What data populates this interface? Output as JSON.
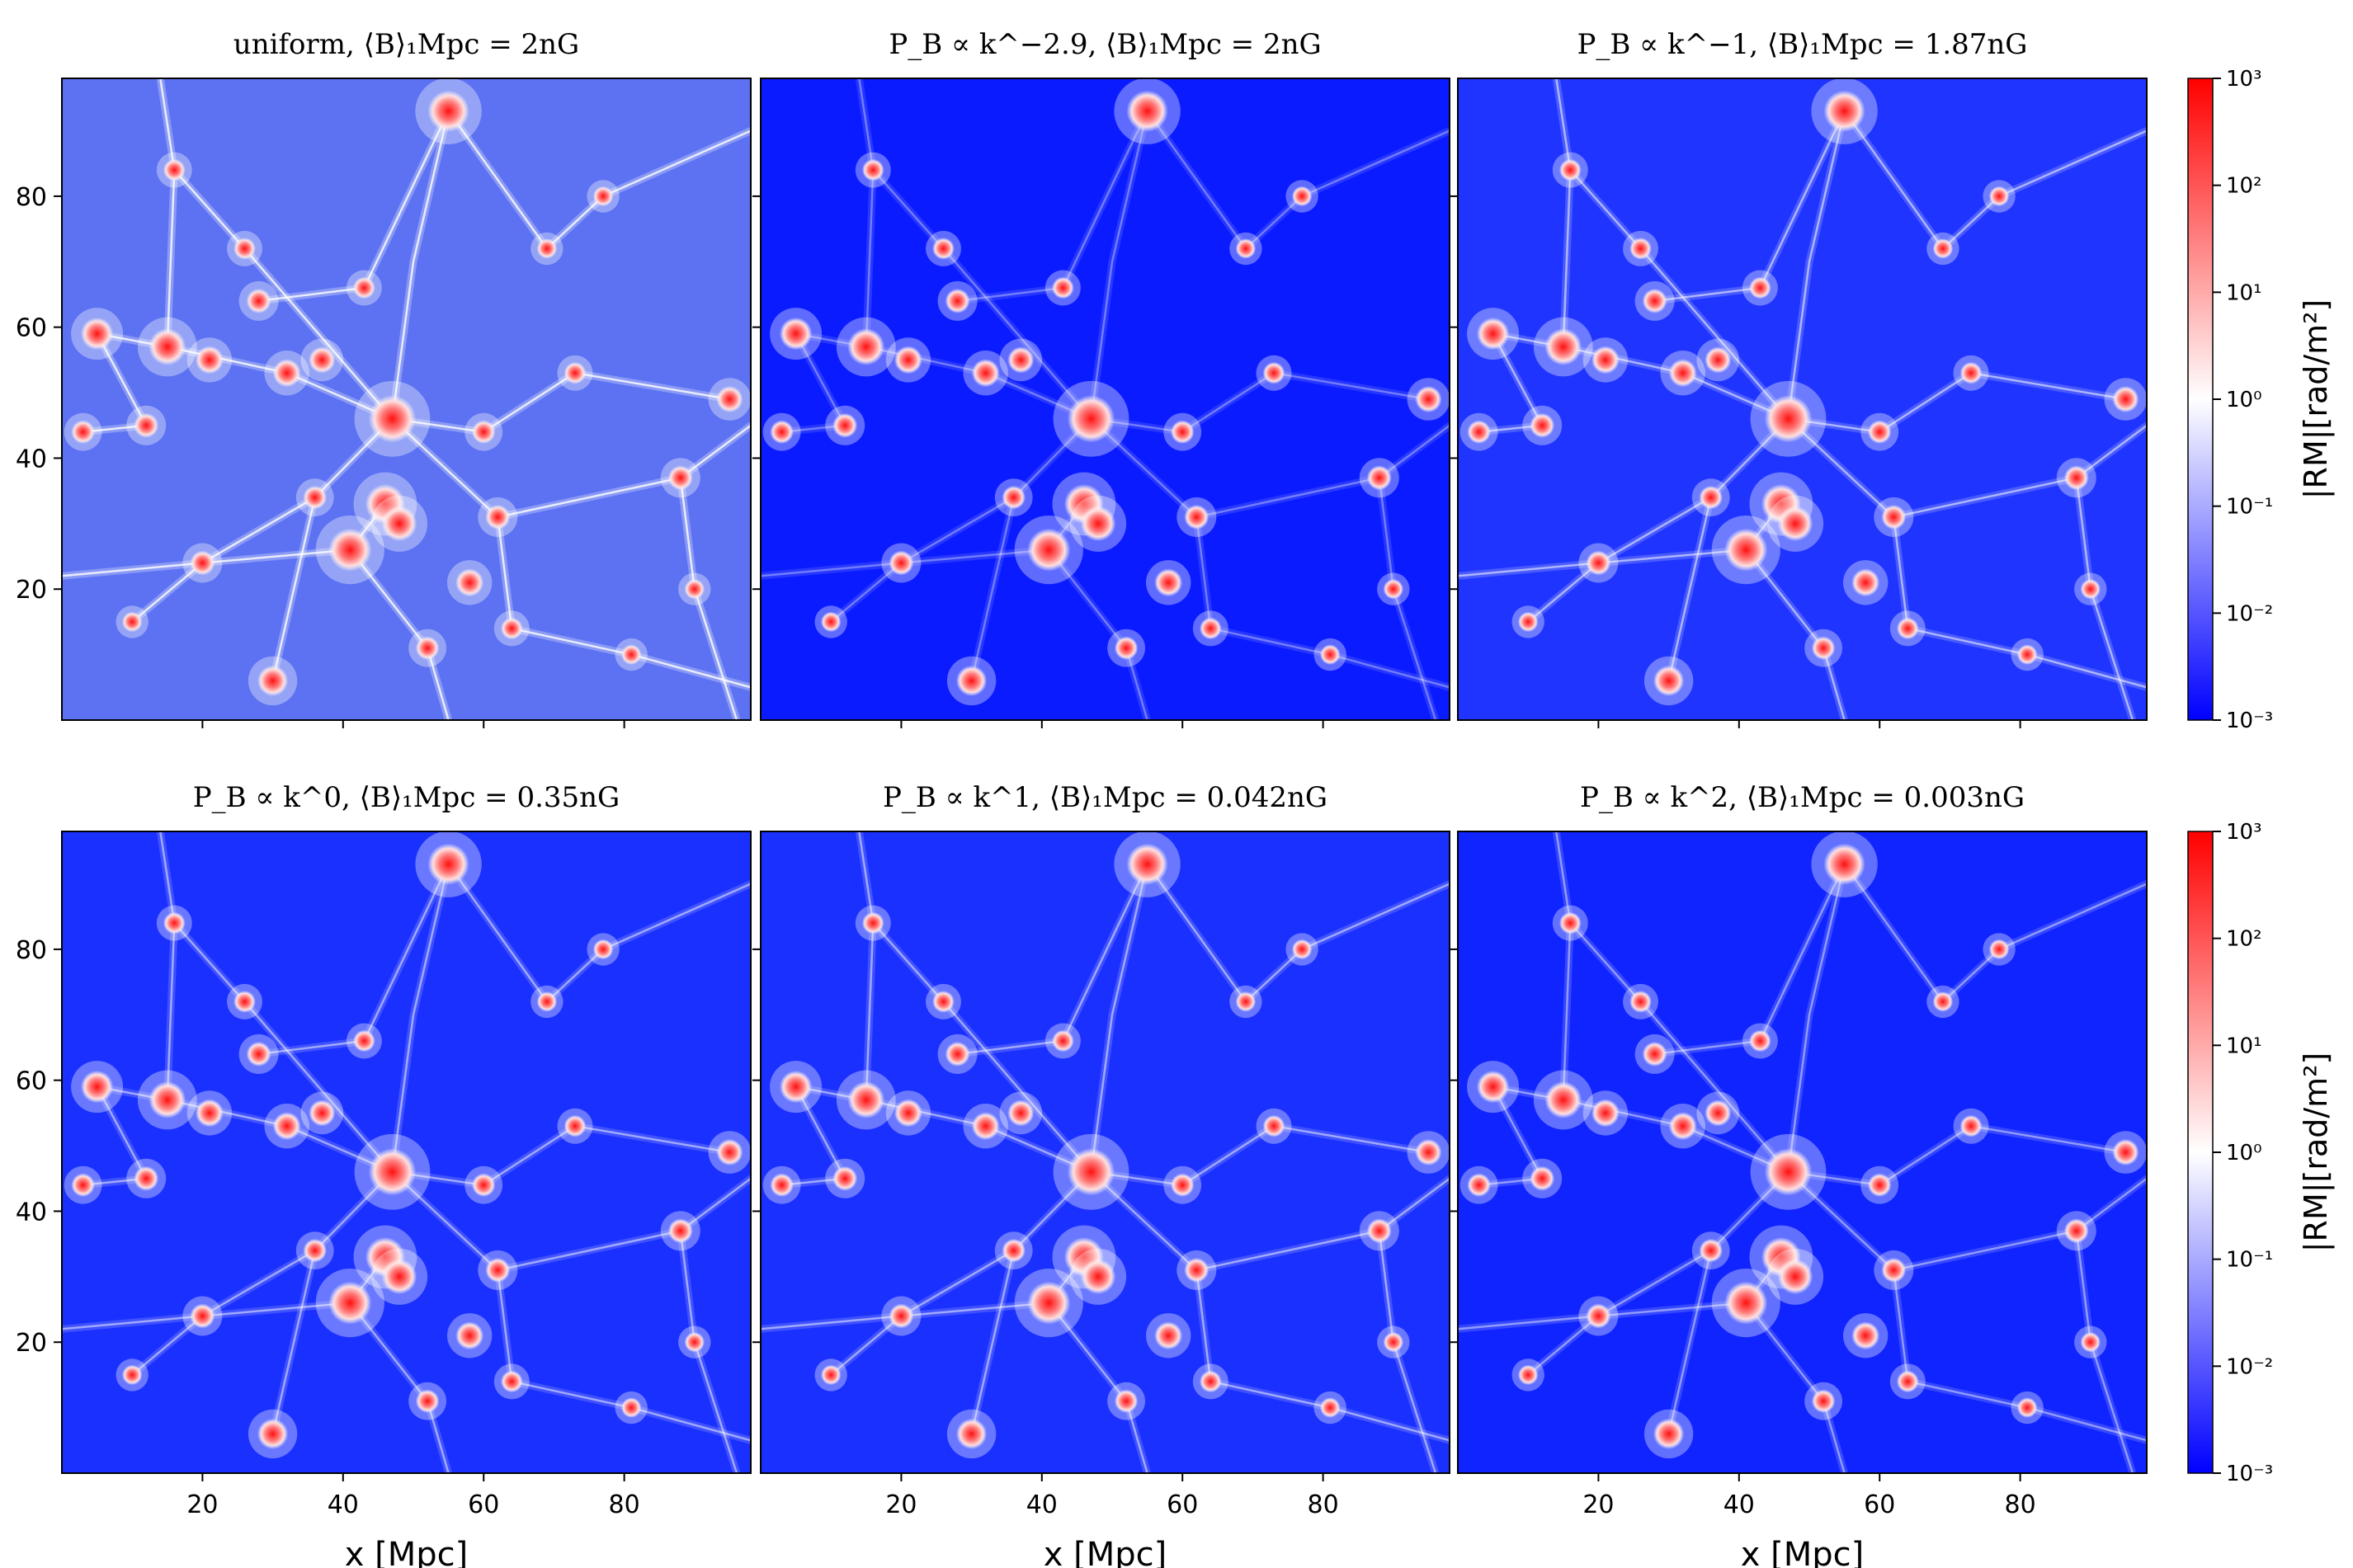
{
  "chart_data": {
    "type": "heatmap",
    "grid": false,
    "colormap": [
      "#0000ff",
      "#ffffff",
      "#ff0000"
    ],
    "color_scale": "log",
    "colorbar": {
      "label": "|RM|[rad/m²]",
      "range": [
        0.001,
        1000
      ],
      "ticks": [
        "10⁻³",
        "10⁻²",
        "10⁻¹",
        "10⁰",
        "10¹",
        "10²",
        "10³"
      ]
    },
    "x_axis": {
      "label": "x [Mpc]",
      "range": [
        0,
        98
      ],
      "ticks": [
        "20",
        "40",
        "60",
        "80"
      ]
    },
    "y_axis": {
      "label": "",
      "range": [
        0,
        98
      ],
      "ticks": [
        "20",
        "40",
        "60",
        "80"
      ]
    },
    "panels": [
      {
        "title": "uniform, ⟨B⟩₁Mpc = 2nG",
        "background": "#5c72f2",
        "filament_alpha": 0.8
      },
      {
        "title": "P_B ∝ k^−2.9, ⟨B⟩₁Mpc = 2nG",
        "background": "#0a1cff",
        "filament_alpha": 0.35
      },
      {
        "title": "P_B ∝ k^−1, ⟨B⟩₁Mpc = 1.87nG",
        "background": "#1f35ff",
        "filament_alpha": 0.55
      },
      {
        "title": "P_B ∝ k^0, ⟨B⟩₁Mpc = 0.35nG",
        "background": "#1a30ff",
        "filament_alpha": 0.5
      },
      {
        "title": "P_B ∝ k^1, ⟨B⟩₁Mpc = 0.042nG",
        "background": "#1a30ff",
        "filament_alpha": 0.5
      },
      {
        "title": "P_B ∝ k^2, ⟨B⟩₁Mpc = 0.003nG",
        "background": "#0f24ff",
        "filament_alpha": 0.45
      }
    ],
    "clusters": [
      {
        "x": 47,
        "y": 46,
        "rm": 200
      },
      {
        "x": 55,
        "y": 93,
        "rm": 80
      },
      {
        "x": 15,
        "y": 57,
        "rm": 40
      },
      {
        "x": 41,
        "y": 26,
        "rm": 100
      },
      {
        "x": 46,
        "y": 33,
        "rm": 60
      },
      {
        "x": 48,
        "y": 30,
        "rm": 30
      },
      {
        "x": 5,
        "y": 59,
        "rm": 20
      },
      {
        "x": 30,
        "y": 6,
        "rm": 15
      },
      {
        "x": 21,
        "y": 55,
        "rm": 10
      },
      {
        "x": 32,
        "y": 53,
        "rm": 10
      },
      {
        "x": 37,
        "y": 55,
        "rm": 8
      },
      {
        "x": 58,
        "y": 21,
        "rm": 10
      },
      {
        "x": 28,
        "y": 64,
        "rm": 6
      },
      {
        "x": 95,
        "y": 49,
        "rm": 8
      },
      {
        "x": 88,
        "y": 37,
        "rm": 6
      },
      {
        "x": 60,
        "y": 44,
        "rm": 5
      },
      {
        "x": 20,
        "y": 24,
        "rm": 6
      },
      {
        "x": 12,
        "y": 45,
        "rm": 6
      },
      {
        "x": 36,
        "y": 34,
        "rm": 5
      },
      {
        "x": 62,
        "y": 31,
        "rm": 6
      },
      {
        "x": 52,
        "y": 11,
        "rm": 5
      },
      {
        "x": 26,
        "y": 72,
        "rm": 4
      },
      {
        "x": 43,
        "y": 66,
        "rm": 4
      },
      {
        "x": 16,
        "y": 84,
        "rm": 4
      },
      {
        "x": 77,
        "y": 80,
        "rm": 3
      },
      {
        "x": 69,
        "y": 72,
        "rm": 3
      },
      {
        "x": 73,
        "y": 53,
        "rm": 4
      },
      {
        "x": 90,
        "y": 20,
        "rm": 3
      },
      {
        "x": 3,
        "y": 44,
        "rm": 5
      },
      {
        "x": 64,
        "y": 14,
        "rm": 4
      },
      {
        "x": 81,
        "y": 10,
        "rm": 3
      },
      {
        "x": 10,
        "y": 15,
        "rm": 3
      }
    ],
    "filaments": [
      [
        [
          55,
          93
        ],
        [
          50,
          70
        ],
        [
          47,
          46
        ]
      ],
      [
        [
          47,
          46
        ],
        [
          36,
          34
        ],
        [
          30,
          6
        ]
      ],
      [
        [
          47,
          46
        ],
        [
          32,
          53
        ],
        [
          15,
          57
        ],
        [
          5,
          59
        ]
      ],
      [
        [
          47,
          46
        ],
        [
          60,
          44
        ],
        [
          73,
          53
        ],
        [
          95,
          49
        ]
      ],
      [
        [
          47,
          46
        ],
        [
          62,
          31
        ],
        [
          88,
          37
        ],
        [
          98,
          45
        ]
      ],
      [
        [
          46,
          33
        ],
        [
          41,
          26
        ],
        [
          20,
          24
        ],
        [
          0,
          22
        ]
      ],
      [
        [
          5,
          59
        ],
        [
          12,
          45
        ],
        [
          3,
          44
        ]
      ],
      [
        [
          15,
          57
        ],
        [
          16,
          84
        ],
        [
          14,
          98
        ]
      ],
      [
        [
          41,
          26
        ],
        [
          52,
          11
        ],
        [
          55,
          0
        ]
      ],
      [
        [
          62,
          31
        ],
        [
          64,
          14
        ],
        [
          81,
          10
        ],
        [
          98,
          5
        ]
      ],
      [
        [
          55,
          93
        ],
        [
          69,
          72
        ],
        [
          77,
          80
        ],
        [
          98,
          90
        ]
      ],
      [
        [
          28,
          64
        ],
        [
          43,
          66
        ],
        [
          55,
          93
        ]
      ],
      [
        [
          47,
          46
        ],
        [
          26,
          72
        ],
        [
          16,
          84
        ]
      ],
      [
        [
          10,
          15
        ],
        [
          20,
          24
        ],
        [
          36,
          34
        ]
      ],
      [
        [
          88,
          37
        ],
        [
          90,
          20
        ],
        [
          96,
          0
        ]
      ]
    ]
  }
}
